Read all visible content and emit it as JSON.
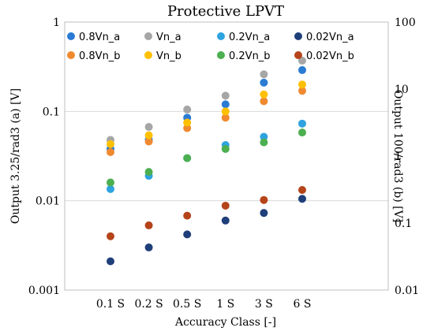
{
  "chart_data": {
    "type": "scatter",
    "title": "Protective LPVT",
    "xlabel": "Accuracy Class [-]",
    "ylabel": "Output 3.25/rad3 (a) [V]",
    "ylabel_right": "Output 100/rad3 (b) [V]",
    "y_scale": "log",
    "ylim": [
      0.001,
      1
    ],
    "ylim_right": [
      0.01,
      100
    ],
    "y_ticks": [
      "0.001",
      "0.01",
      "0.1",
      "1"
    ],
    "y_ticks_right": [
      "0.01",
      "0.1",
      "1",
      "10",
      "100"
    ],
    "categories": [
      "0.1 S",
      "0.2 S",
      "0.5 S",
      "1 S",
      "3 S",
      "6 S"
    ],
    "grid": "horizontal",
    "legend_position": "top",
    "series": [
      {
        "name": "0.8Vn_a",
        "color": "#2a7bd4",
        "axis": "left",
        "values": [
          0.038,
          0.048,
          0.085,
          0.12,
          0.21,
          0.29
        ]
      },
      {
        "name": "0.8Vn_b",
        "color": "#f08a30",
        "axis": "left",
        "values": [
          0.035,
          0.046,
          0.065,
          0.085,
          0.13,
          0.17
        ]
      },
      {
        "name": "Vn_a",
        "color": "#a6a6a6",
        "axis": "left",
        "values": [
          0.048,
          0.067,
          0.105,
          0.15,
          0.26,
          0.37
        ]
      },
      {
        "name": "Vn_b",
        "color": "#ffc000",
        "axis": "left",
        "values": [
          0.043,
          0.054,
          0.075,
          0.1,
          0.155,
          0.2
        ]
      },
      {
        "name": "0.2Vn_a",
        "color": "#2ea3e0",
        "axis": "left",
        "values": [
          0.0135,
          0.019,
          0.03,
          0.042,
          0.052,
          0.073
        ]
      },
      {
        "name": "0.2Vn_b",
        "color": "#4caf50",
        "axis": "left",
        "values": [
          0.016,
          0.021,
          0.03,
          0.038,
          0.045,
          0.058
        ]
      },
      {
        "name": "0.02Vn_a",
        "color": "#1f3f7a",
        "axis": "left",
        "values": [
          0.0021,
          0.003,
          0.0042,
          0.006,
          0.0073,
          0.0105
        ]
      },
      {
        "name": "0.02Vn_b",
        "color": "#b5441a",
        "axis": "left",
        "values": [
          0.004,
          0.0053,
          0.0068,
          0.0088,
          0.0102,
          0.0132
        ]
      }
    ]
  }
}
